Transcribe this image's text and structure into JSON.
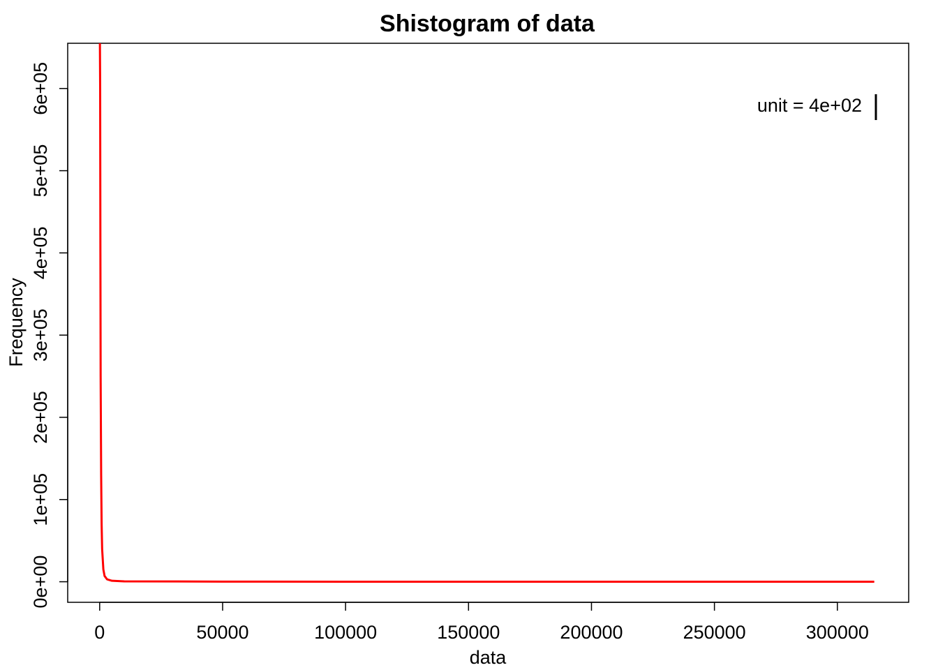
{
  "chart_data": {
    "type": "line",
    "title": "Shistogram of data",
    "xlabel": "data",
    "ylabel": "Frequency",
    "xlim": [
      -13000,
      329000
    ],
    "ylim": [
      -25000,
      655000
    ],
    "x_ticks": [
      0,
      50000,
      100000,
      150000,
      200000,
      250000,
      300000
    ],
    "x_tick_labels": [
      "0",
      "50000",
      "100000",
      "150000",
      "200000",
      "250000",
      "300000"
    ],
    "y_ticks": [
      0,
      100000,
      200000,
      300000,
      400000,
      500000,
      600000
    ],
    "y_tick_labels": [
      "0e+00",
      "1e+05",
      "2e+05",
      "3e+05",
      "4e+05",
      "5e+05",
      "6e+05"
    ],
    "annotation": "unit = 4e+02",
    "series": [
      {
        "color": "#ff0000",
        "x": [
          0,
          100,
          200,
          300,
          400,
          600,
          800,
          1000,
          1500,
          2000,
          3000,
          5000,
          10000,
          50000,
          100000,
          200000,
          315000
        ],
        "y": [
          655000,
          655000,
          600000,
          400000,
          250000,
          130000,
          70000,
          40000,
          15000,
          7000,
          3000,
          1200,
          500,
          200,
          80,
          30,
          10
        ]
      }
    ]
  }
}
